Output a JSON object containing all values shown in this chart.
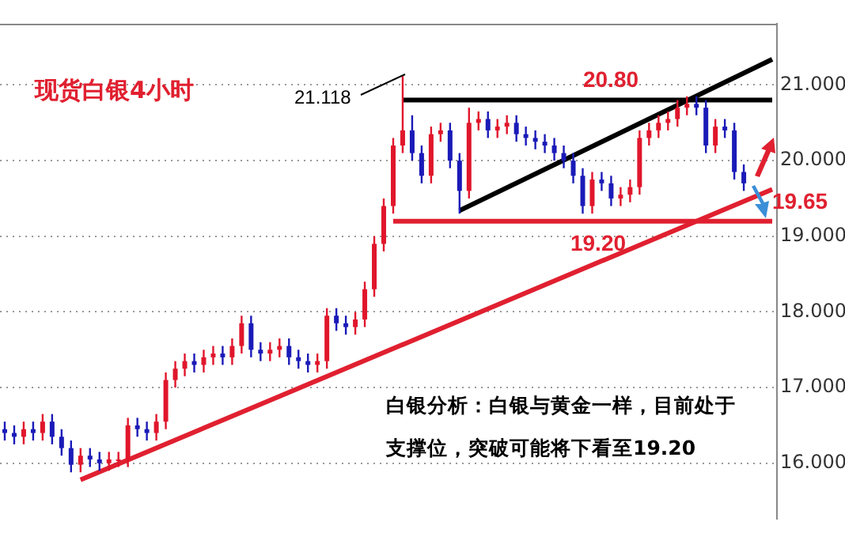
{
  "chart_data": {
    "type": "candlestick",
    "title": "现货白银4小时",
    "categories": [
      null,
      null,
      null,
      null,
      null,
      null,
      null,
      null,
      null,
      null,
      null,
      null,
      null,
      null,
      null,
      null,
      null,
      null,
      null,
      null,
      null,
      null,
      null,
      null,
      null,
      null,
      null,
      null,
      null,
      null,
      null,
      null,
      null,
      null,
      null,
      null,
      null,
      null,
      null,
      null,
      null,
      null,
      null,
      null,
      null,
      null,
      null,
      null,
      null,
      null,
      null,
      null,
      null,
      null,
      null,
      null,
      null,
      null,
      null,
      null,
      null,
      null,
      null,
      null,
      null,
      null,
      null,
      null,
      null,
      null,
      null,
      null,
      null,
      null,
      null,
      null,
      null,
      null,
      null,
      null,
      null,
      null
    ],
    "ohlc": [
      [
        16.45,
        16.55,
        16.3,
        16.4
      ],
      [
        16.4,
        16.5,
        16.25,
        16.35
      ],
      [
        16.35,
        16.55,
        16.25,
        16.45
      ],
      [
        16.45,
        16.55,
        16.3,
        16.4
      ],
      [
        16.4,
        16.65,
        16.3,
        16.55
      ],
      [
        16.55,
        16.65,
        16.25,
        16.35
      ],
      [
        16.35,
        16.45,
        16.1,
        16.2
      ],
      [
        16.2,
        16.3,
        15.88,
        15.98
      ],
      [
        15.98,
        16.2,
        15.88,
        16.1
      ],
      [
        16.1,
        16.2,
        15.95,
        16.05
      ],
      [
        16.05,
        16.15,
        15.9,
        16.0
      ],
      [
        16.0,
        16.15,
        15.9,
        16.05
      ],
      [
        16.05,
        16.15,
        15.95,
        16.05
      ],
      [
        16.05,
        16.6,
        15.95,
        16.5
      ],
      [
        16.5,
        16.6,
        16.35,
        16.45
      ],
      [
        16.45,
        16.55,
        16.3,
        16.4
      ],
      [
        16.4,
        16.65,
        16.3,
        16.55
      ],
      [
        16.55,
        17.2,
        16.45,
        17.1
      ],
      [
        17.1,
        17.35,
        17.0,
        17.25
      ],
      [
        17.25,
        17.45,
        17.15,
        17.35
      ],
      [
        17.35,
        17.45,
        17.2,
        17.3
      ],
      [
        17.3,
        17.5,
        17.2,
        17.4
      ],
      [
        17.4,
        17.55,
        17.3,
        17.45
      ],
      [
        17.45,
        17.55,
        17.3,
        17.4
      ],
      [
        17.4,
        17.65,
        17.3,
        17.55
      ],
      [
        17.55,
        17.95,
        17.45,
        17.85
      ],
      [
        17.85,
        17.95,
        17.4,
        17.5
      ],
      [
        17.5,
        17.6,
        17.35,
        17.45
      ],
      [
        17.45,
        17.6,
        17.35,
        17.5
      ],
      [
        17.5,
        17.65,
        17.4,
        17.55
      ],
      [
        17.55,
        17.65,
        17.3,
        17.4
      ],
      [
        17.4,
        17.5,
        17.25,
        17.35
      ],
      [
        17.35,
        17.45,
        17.2,
        17.3
      ],
      [
        17.3,
        17.45,
        17.2,
        17.35
      ],
      [
        17.35,
        18.05,
        17.25,
        17.95
      ],
      [
        17.95,
        18.05,
        17.75,
        17.85
      ],
      [
        17.85,
        17.95,
        17.7,
        17.8
      ],
      [
        17.8,
        18.0,
        17.7,
        17.9
      ],
      [
        17.9,
        18.4,
        17.8,
        18.3
      ],
      [
        18.3,
        19.0,
        18.2,
        18.9
      ],
      [
        18.9,
        19.5,
        18.8,
        19.4
      ],
      [
        19.4,
        20.3,
        19.3,
        20.2
      ],
      [
        20.2,
        21.118,
        20.1,
        20.4
      ],
      [
        20.4,
        20.6,
        20.0,
        20.1
      ],
      [
        20.1,
        20.2,
        19.7,
        19.8
      ],
      [
        19.8,
        20.45,
        19.7,
        20.35
      ],
      [
        20.35,
        20.5,
        20.25,
        20.4
      ],
      [
        20.4,
        20.5,
        19.9,
        20.0
      ],
      [
        20.0,
        20.1,
        19.3,
        19.6
      ],
      [
        19.6,
        20.7,
        19.5,
        20.5
      ],
      [
        20.5,
        20.65,
        20.4,
        20.55
      ],
      [
        20.55,
        20.65,
        20.3,
        20.4
      ],
      [
        20.4,
        20.55,
        20.3,
        20.45
      ],
      [
        20.45,
        20.6,
        20.35,
        20.5
      ],
      [
        20.5,
        20.6,
        20.25,
        20.35
      ],
      [
        20.35,
        20.45,
        20.2,
        20.3
      ],
      [
        20.3,
        20.4,
        20.15,
        20.25
      ],
      [
        20.25,
        20.35,
        20.1,
        20.2
      ],
      [
        20.2,
        20.3,
        20.0,
        20.1
      ],
      [
        20.1,
        20.2,
        19.9,
        20.0
      ],
      [
        20.0,
        20.1,
        19.7,
        19.8
      ],
      [
        19.8,
        19.9,
        19.3,
        19.4
      ],
      [
        19.4,
        19.85,
        19.3,
        19.75
      ],
      [
        19.75,
        19.85,
        19.6,
        19.7
      ],
      [
        19.7,
        19.8,
        19.4,
        19.5
      ],
      [
        19.5,
        19.65,
        19.4,
        19.55
      ],
      [
        19.55,
        19.75,
        19.45,
        19.65
      ],
      [
        19.65,
        20.4,
        19.55,
        20.3
      ],
      [
        20.3,
        20.5,
        20.2,
        20.4
      ],
      [
        20.4,
        20.6,
        20.3,
        20.5
      ],
      [
        20.5,
        20.65,
        20.4,
        20.55
      ],
      [
        20.55,
        20.8,
        20.45,
        20.7
      ],
      [
        20.7,
        20.85,
        20.6,
        20.75
      ],
      [
        20.75,
        20.85,
        20.6,
        20.7
      ],
      [
        20.7,
        20.8,
        20.1,
        20.2
      ],
      [
        20.2,
        20.55,
        20.1,
        20.45
      ],
      [
        20.45,
        20.55,
        20.3,
        20.4
      ],
      [
        20.4,
        20.5,
        19.75,
        19.85
      ],
      [
        19.85,
        19.95,
        19.6,
        19.7
      ],
      null,
      null,
      null
    ],
    "series": [
      {
        "type": "line",
        "color": "#e02030",
        "values": [
          null,
          null,
          null,
          null,
          null,
          null,
          null,
          null,
          15.78,
          null,
          null,
          null,
          null,
          null,
          null,
          null,
          null,
          null,
          null,
          null,
          null,
          null,
          null,
          null,
          null,
          null,
          null,
          null,
          null,
          null,
          null,
          null,
          null,
          null,
          null,
          null,
          null,
          null,
          null,
          null,
          null,
          null,
          null,
          null,
          null,
          null,
          null,
          null,
          null,
          null,
          null,
          null,
          null,
          null,
          null,
          null,
          null,
          null,
          null,
          null,
          null,
          null,
          null,
          null,
          null,
          null,
          null,
          null,
          null,
          null,
          null,
          null,
          null,
          null,
          null,
          null,
          null,
          null,
          null,
          null,
          null,
          19.62
        ]
      },
      {
        "type": "line",
        "color": "#000000",
        "values": [
          null,
          null,
          null,
          null,
          null,
          null,
          null,
          null,
          null,
          null,
          null,
          null,
          null,
          null,
          null,
          null,
          null,
          null,
          null,
          null,
          null,
          null,
          null,
          null,
          null,
          null,
          null,
          null,
          null,
          null,
          null,
          null,
          null,
          null,
          null,
          null,
          null,
          null,
          null,
          null,
          null,
          null,
          null,
          null,
          null,
          null,
          null,
          null,
          19.34,
          null,
          null,
          null,
          null,
          null,
          null,
          null,
          null,
          null,
          null,
          null,
          null,
          null,
          null,
          null,
          null,
          null,
          null,
          null,
          null,
          null,
          null,
          null,
          null,
          null,
          null,
          null,
          null,
          null,
          null,
          null,
          null,
          21.34
        ]
      },
      {
        "type": "line",
        "color": "#000000",
        "values": [
          null,
          null,
          null,
          null,
          null,
          null,
          null,
          null,
          null,
          null,
          null,
          null,
          null,
          null,
          null,
          null,
          null,
          null,
          null,
          null,
          null,
          null,
          null,
          null,
          null,
          null,
          null,
          null,
          null,
          null,
          null,
          null,
          null,
          null,
          null,
          null,
          null,
          null,
          null,
          null,
          null,
          null,
          20.8,
          null,
          null,
          null,
          null,
          null,
          null,
          null,
          null,
          null,
          null,
          null,
          null,
          null,
          null,
          null,
          null,
          null,
          null,
          null,
          null,
          null,
          null,
          null,
          null,
          null,
          null,
          null,
          null,
          null,
          null,
          null,
          null,
          null,
          null,
          null,
          null,
          null,
          null,
          20.8
        ]
      },
      {
        "type": "line",
        "color": "#e02030",
        "values": [
          null,
          null,
          null,
          null,
          null,
          null,
          null,
          null,
          null,
          null,
          null,
          null,
          null,
          null,
          null,
          null,
          null,
          null,
          null,
          null,
          null,
          null,
          null,
          null,
          null,
          null,
          null,
          null,
          null,
          null,
          null,
          null,
          null,
          null,
          null,
          null,
          null,
          null,
          null,
          null,
          null,
          19.2,
          null,
          null,
          null,
          null,
          null,
          null,
          null,
          null,
          null,
          null,
          null,
          null,
          null,
          null,
          null,
          null,
          null,
          null,
          null,
          null,
          null,
          null,
          null,
          null,
          null,
          null,
          null,
          null,
          null,
          null,
          null,
          null,
          null,
          null,
          null,
          null,
          null,
          null,
          null,
          19.2
        ]
      }
    ],
    "ylim": [
      15.27,
      21.81
    ],
    "yticks": [
      {
        "value": 16,
        "label": "16.000"
      },
      {
        "value": 17,
        "label": "17.000"
      },
      {
        "value": 18,
        "label": "18.000"
      },
      {
        "value": 19,
        "label": "19.000"
      },
      {
        "value": 20,
        "label": "20.000"
      },
      {
        "value": 21,
        "label": "21.000"
      }
    ],
    "tick_labels": "y",
    "grid": "y",
    "legend": false,
    "annotations": [
      "21.118",
      {
        "text": "20.80",
        "y": 20.8
      },
      {
        "text": "19.20",
        "y": 19.2
      },
      "19.65",
      "白银分析：白银与黄金一样，目前处于支撑位，突破可能将下看至19.20"
    ]
  }
}
